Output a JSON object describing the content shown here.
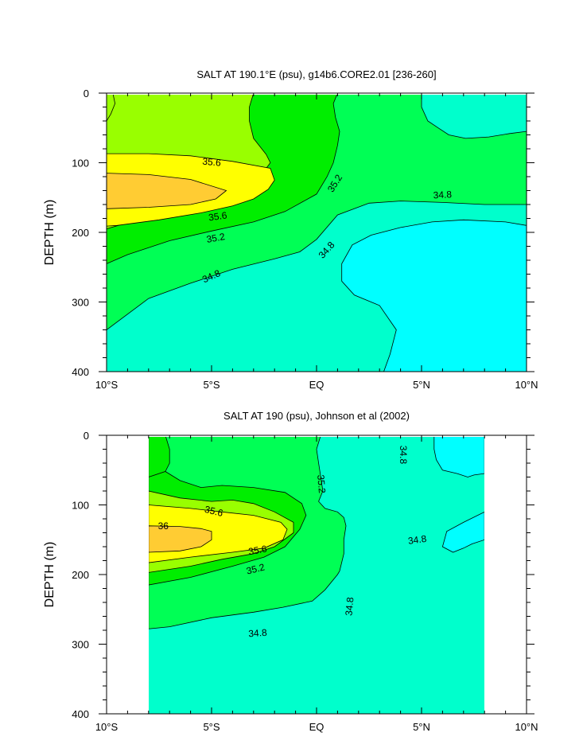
{
  "chart_data": [
    {
      "type": "contour",
      "title": "SALT AT 190.1°E (psu), g14b6.CORE2.01 [236-260]",
      "ylabel": "DEPTH (m)",
      "xlim": [
        -10,
        10
      ],
      "ylim": [
        0,
        400
      ],
      "y_inverted": true,
      "xticks": [
        -10,
        -5,
        0,
        5,
        10
      ],
      "xtick_labels": [
        "10°S",
        "5°S",
        "EQ",
        "5°N",
        "10°N"
      ],
      "yticks": [
        0,
        100,
        200,
        300,
        400
      ],
      "data_xrange": [
        -10,
        10
      ],
      "contour_levels": [
        34.8,
        35.0,
        35.2,
        35.4,
        35.6,
        35.8,
        36.0
      ],
      "fill_colors": {
        "below_34.8": "#00ffff",
        "34.8-35.0": "#00ffcc",
        "35.0-35.2": "#00ff55",
        "35.2-35.4": "#00ee00",
        "35.4-35.6": "#99ff00",
        "35.6-35.8": "#ffff00",
        "above_35.8": "#ffcc33"
      },
      "regions": [
        {
          "level": 35.0,
          "points": [
            [
              -10,
              0
            ],
            [
              10,
              0
            ],
            [
              10,
              400
            ],
            [
              -10,
              400
            ]
          ]
        },
        {
          "level": 35.2,
          "points": [
            [
              -10,
              0
            ],
            [
              5,
              0
            ],
            [
              5,
              20
            ],
            [
              5.3,
              40
            ],
            [
              5.8,
              50
            ],
            [
              6.3,
              60
            ],
            [
              7.1,
              65
            ],
            [
              8.2,
              63
            ],
            [
              9.2,
              58
            ],
            [
              10,
              55
            ],
            [
              10,
              160
            ],
            [
              8,
              160
            ],
            [
              6,
              157
            ],
            [
              4,
              155
            ],
            [
              2.5,
              158
            ],
            [
              1,
              175
            ],
            [
              0,
              210
            ],
            [
              -0.8,
              228
            ],
            [
              -2,
              238
            ],
            [
              -4,
              253
            ],
            [
              -6,
              273
            ],
            [
              -8,
              295
            ],
            [
              -10,
              340
            ],
            [
              -10,
              0
            ]
          ]
        },
        {
          "level": 35.4,
          "points": [
            [
              -10,
              0
            ],
            [
              1,
              0
            ],
            [
              0.8,
              15
            ],
            [
              0.9,
              35
            ],
            [
              1.1,
              55
            ],
            [
              1,
              75
            ],
            [
              0.8,
              100
            ],
            [
              0.5,
              120
            ],
            [
              0,
              145
            ],
            [
              -1.5,
              170
            ],
            [
              -3,
              185
            ],
            [
              -5,
              198
            ],
            [
              -7,
              212
            ],
            [
              -9,
              232
            ],
            [
              -10,
              245
            ],
            [
              -10,
              0
            ]
          ]
        },
        {
          "level": 35.6,
          "points": [
            [
              -10,
              0
            ],
            [
              -3,
              0
            ],
            [
              -3.2,
              20
            ],
            [
              -3.2,
              40
            ],
            [
              -3,
              65
            ],
            [
              -2.4,
              88
            ],
            [
              -2.2,
              100
            ],
            [
              -2.5,
              112
            ],
            [
              -3.2,
              130
            ],
            [
              -4.5,
              148
            ],
            [
              -6.3,
              162
            ],
            [
              -8.3,
              180
            ],
            [
              -10,
              195
            ],
            [
              -10,
              0
            ]
          ]
        },
        {
          "level": 35.6,
          "points": [
            [
              -10,
              0
            ],
            [
              -9.7,
              0
            ],
            [
              -9.6,
              15
            ],
            [
              -9.8,
              30
            ],
            [
              -10,
              40
            ],
            [
              -10,
              0
            ]
          ]
        },
        {
          "level": 35.8,
          "points": [
            [
              -10,
              87
            ],
            [
              -8,
              87
            ],
            [
              -6,
              90
            ],
            [
              -4,
              98
            ],
            [
              -2.2,
              108
            ],
            [
              -2,
              125
            ],
            [
              -2.3,
              138
            ],
            [
              -3,
              152
            ],
            [
              -4,
              162
            ],
            [
              -5.5,
              172
            ],
            [
              -7.5,
              182
            ],
            [
              -9.5,
              190
            ],
            [
              -10,
              191
            ],
            [
              -10,
              87
            ]
          ]
        },
        {
          "level": 36.0,
          "points": [
            [
              -10,
              115
            ],
            [
              -8,
              117
            ],
            [
              -6,
              124
            ],
            [
              -4.3,
              140
            ],
            [
              -4.8,
              152
            ],
            [
              -6,
              160
            ],
            [
              -8,
              164
            ],
            [
              -10,
              166
            ],
            [
              -10,
              115
            ]
          ]
        },
        {
          "level": 34.8,
          "points": [
            [
              10,
              190
            ],
            [
              9,
              185
            ],
            [
              7,
              182
            ],
            [
              5.5,
              185
            ],
            [
              4,
              193
            ],
            [
              2.6,
              204
            ],
            [
              1.7,
              218
            ],
            [
              1.2,
              245
            ],
            [
              1.2,
              270
            ],
            [
              1.8,
              290
            ],
            [
              3,
              305
            ],
            [
              3.8,
              340
            ],
            [
              3.5,
              375
            ],
            [
              3.2,
              400
            ],
            [
              10,
              400
            ],
            [
              10,
              190
            ]
          ]
        }
      ],
      "labels": [
        {
          "text": "35.6",
          "x": -5,
          "y": 100,
          "rotate": 5
        },
        {
          "text": "35.2",
          "x": 0.9,
          "y": 130,
          "rotate": -58
        },
        {
          "text": "34.8",
          "x": 6,
          "y": 147,
          "rotate": -3
        },
        {
          "text": "35.6",
          "x": -4.7,
          "y": 178,
          "rotate": -8
        },
        {
          "text": "35.2",
          "x": -4.8,
          "y": 209,
          "rotate": -10
        },
        {
          "text": "34.8",
          "x": 0.5,
          "y": 226,
          "rotate": -48
        },
        {
          "text": "34.8",
          "x": -5,
          "y": 264,
          "rotate": -24
        }
      ]
    },
    {
      "type": "contour",
      "title": "SALT AT 190 (psu), Johnson et al (2002)",
      "ylabel": "DEPTH (m)",
      "xlim": [
        -10,
        10
      ],
      "ylim": [
        0,
        400
      ],
      "y_inverted": true,
      "xticks": [
        -10,
        -5,
        0,
        5,
        10
      ],
      "xtick_labels": [
        "10°S",
        "5°S",
        "EQ",
        "5°N",
        "10°N"
      ],
      "yticks": [
        0,
        100,
        200,
        300,
        400
      ],
      "data_xrange": [
        -8,
        8
      ],
      "contour_levels": [
        34.8,
        35.0,
        35.2,
        35.4,
        35.6,
        35.8,
        36.0
      ],
      "fill_colors": {
        "below_34.8": "#00ffff",
        "34.8-35.0": "#00ffcc",
        "35.0-35.2": "#00ff55",
        "35.2-35.4": "#00ee00",
        "35.4-35.6": "#99ff00",
        "35.6-35.8": "#ffff00",
        "above_35.8": "#ffcc33"
      },
      "regions": [
        {
          "level": 35.0,
          "points": [
            [
              -8,
              0
            ],
            [
              8,
              0
            ],
            [
              8,
              400
            ],
            [
              -8,
              400
            ]
          ]
        },
        {
          "level": 34.8,
          "points": [
            [
              8,
              0
            ],
            [
              5.6,
              0
            ],
            [
              5.6,
              20
            ],
            [
              5.7,
              35
            ],
            [
              6,
              50
            ],
            [
              6.7,
              55
            ],
            [
              7.2,
              60
            ],
            [
              7.5,
              57
            ],
            [
              8,
              55
            ],
            [
              8,
              0
            ]
          ]
        },
        {
          "level": 34.8,
          "points": [
            [
              8,
              110
            ],
            [
              7,
              125
            ],
            [
              6.2,
              138
            ],
            [
              6,
              160
            ],
            [
              6.5,
              168
            ],
            [
              7,
              162
            ],
            [
              7.4,
              156
            ],
            [
              8,
              150
            ],
            [
              8,
              110
            ]
          ]
        },
        {
          "level": 35.2,
          "points": [
            [
              -8,
              0
            ],
            [
              0.2,
              0
            ],
            [
              0,
              20
            ],
            [
              0.1,
              40
            ],
            [
              0.2,
              60
            ],
            [
              0.3,
              80
            ],
            [
              0.1,
              95
            ],
            [
              0.4,
              105
            ],
            [
              1,
              110
            ],
            [
              1.3,
              118
            ],
            [
              1.4,
              130
            ],
            [
              1.3,
              150
            ],
            [
              1.3,
              170
            ],
            [
              1.1,
              195
            ],
            [
              1,
              200
            ],
            [
              0.4,
              222
            ],
            [
              -0.2,
              238
            ],
            [
              -1.6,
              247
            ],
            [
              -3,
              254
            ],
            [
              -5,
              262
            ],
            [
              -7,
              275
            ],
            [
              -8,
              278
            ],
            [
              -8,
              0
            ]
          ]
        },
        {
          "level": 35.4,
          "points": [
            [
              -8,
              0
            ],
            [
              -7.2,
              0
            ],
            [
              -7,
              20
            ],
            [
              -7,
              40
            ],
            [
              -7.2,
              52
            ],
            [
              -7.5,
              58
            ],
            [
              -8,
              60
            ],
            [
              -8,
              0
            ]
          ]
        },
        {
          "level": 35.4,
          "points": [
            [
              -8,
              60
            ],
            [
              -7.2,
              52
            ],
            [
              -6.5,
              65
            ],
            [
              -5.5,
              75
            ],
            [
              -4.5,
              72
            ],
            [
              -3,
              75
            ],
            [
              -1.5,
              82
            ],
            [
              -0.7,
              98
            ],
            [
              -0.5,
              115
            ],
            [
              -0.8,
              135
            ],
            [
              -1.5,
              160
            ],
            [
              -2.5,
              175
            ],
            [
              -4,
              188
            ],
            [
              -6,
              204
            ],
            [
              -8,
              215
            ],
            [
              -8,
              60
            ]
          ]
        },
        {
          "level": 35.6,
          "points": [
            [
              -8,
              80
            ],
            [
              -6.5,
              90
            ],
            [
              -5,
              95
            ],
            [
              -4,
              93
            ],
            [
              -3,
              98
            ],
            [
              -2,
              110
            ],
            [
              -1.1,
              125
            ],
            [
              -1.1,
              140
            ],
            [
              -2,
              160
            ],
            [
              -3,
              170
            ],
            [
              -4.5,
              178
            ],
            [
              -6,
              188
            ],
            [
              -8,
              197
            ],
            [
              -8,
              80
            ]
          ]
        },
        {
          "level": 35.8,
          "points": [
            [
              -8,
              100
            ],
            [
              -6,
              105
            ],
            [
              -4.5,
              110
            ],
            [
              -3,
              115
            ],
            [
              -1.7,
              125
            ],
            [
              -1.4,
              135
            ],
            [
              -1.6,
              150
            ],
            [
              -2.5,
              162
            ],
            [
              -4,
              168
            ],
            [
              -6,
              175
            ],
            [
              -8,
              183
            ],
            [
              -8,
              100
            ]
          ]
        },
        {
          "level": 36.0,
          "points": [
            [
              -8,
              130
            ],
            [
              -6.5,
              131
            ],
            [
              -5.5,
              134
            ],
            [
              -5,
              138
            ],
            [
              -5,
              150
            ],
            [
              -5.5,
              160
            ],
            [
              -6.5,
              166
            ],
            [
              -8,
              168
            ],
            [
              -8,
              130
            ]
          ]
        }
      ],
      "labels": [
        {
          "text": "34.8",
          "x": 4.1,
          "y": 28,
          "rotate": 90
        },
        {
          "text": "35.2",
          "x": 0.2,
          "y": 70,
          "rotate": 85
        },
        {
          "text": "35.6",
          "x": -4.9,
          "y": 110,
          "rotate": 14
        },
        {
          "text": "36",
          "x": -7.3,
          "y": 131,
          "rotate": 0
        },
        {
          "text": "34.8",
          "x": 4.8,
          "y": 151,
          "rotate": -8
        },
        {
          "text": "35.6",
          "x": -2.8,
          "y": 166,
          "rotate": -10
        },
        {
          "text": "35.2",
          "x": -2.9,
          "y": 193,
          "rotate": -14
        },
        {
          "text": "34.8",
          "x": 1.6,
          "y": 246,
          "rotate": -85
        },
        {
          "text": "34.8",
          "x": -2.8,
          "y": 285,
          "rotate": -4
        }
      ]
    }
  ]
}
